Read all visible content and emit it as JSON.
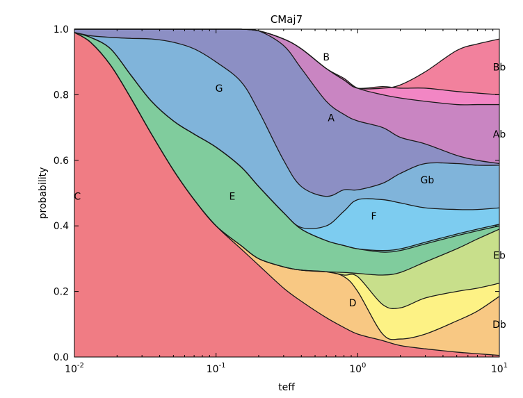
{
  "chart_data": {
    "type": "area",
    "title": "CMaj7",
    "xlabel": "teff",
    "ylabel": "probability",
    "xscale": "log",
    "xlim": [
      0.01,
      10
    ],
    "ylim": [
      0.0,
      1.0
    ],
    "x_ticks": [
      {
        "value": 0.01,
        "base": "10",
        "exp": "-2"
      },
      {
        "value": 0.1,
        "base": "10",
        "exp": "-1"
      },
      {
        "value": 1,
        "base": "10",
        "exp": "0"
      },
      {
        "value": 10,
        "base": "10",
        "exp": "1"
      }
    ],
    "y_ticks": [
      "0.0",
      "0.2",
      "0.4",
      "0.6",
      "0.8",
      "1.0"
    ],
    "x": [
      0.01,
      0.013,
      0.018,
      0.025,
      0.035,
      0.05,
      0.07,
      0.1,
      0.15,
      0.2,
      0.3,
      0.4,
      0.6,
      0.8,
      1.0,
      1.5,
      2.0,
      3.0,
      5.0,
      7.0,
      10.0
    ],
    "boundaries": [
      {
        "name": "C",
        "values": [
          0.99,
          0.96,
          0.89,
          0.79,
          0.68,
          0.57,
          0.48,
          0.4,
          0.33,
          0.28,
          0.21,
          0.17,
          0.12,
          0.09,
          0.07,
          0.05,
          0.035,
          0.025,
          0.015,
          0.01,
          0.005
        ]
      },
      {
        "name": "Db",
        "values": [
          0.99,
          0.96,
          0.89,
          0.79,
          0.68,
          0.57,
          0.48,
          0.4,
          0.34,
          0.3,
          0.275,
          0.265,
          0.26,
          0.245,
          0.2,
          0.07,
          0.055,
          0.07,
          0.11,
          0.14,
          0.185
        ]
      },
      {
        "name": "D",
        "values": [
          0.99,
          0.96,
          0.89,
          0.79,
          0.68,
          0.57,
          0.48,
          0.4,
          0.34,
          0.3,
          0.275,
          0.265,
          0.26,
          0.25,
          0.245,
          0.16,
          0.15,
          0.18,
          0.2,
          0.21,
          0.225
        ]
      },
      {
        "name": "Eb",
        "values": [
          0.99,
          0.96,
          0.89,
          0.79,
          0.68,
          0.57,
          0.48,
          0.4,
          0.34,
          0.3,
          0.275,
          0.265,
          0.26,
          0.258,
          0.255,
          0.25,
          0.258,
          0.29,
          0.33,
          0.36,
          0.39
        ]
      },
      {
        "name": "E",
        "values": [
          0.99,
          0.975,
          0.94,
          0.86,
          0.78,
          0.72,
          0.68,
          0.64,
          0.58,
          0.52,
          0.44,
          0.39,
          0.355,
          0.34,
          0.33,
          0.32,
          0.325,
          0.345,
          0.37,
          0.385,
          0.4
        ]
      },
      {
        "name": "F",
        "values": [
          0.99,
          0.975,
          0.94,
          0.86,
          0.78,
          0.72,
          0.68,
          0.64,
          0.58,
          0.52,
          0.44,
          0.39,
          0.355,
          0.34,
          0.33,
          0.325,
          0.33,
          0.35,
          0.375,
          0.39,
          0.405
        ]
      },
      {
        "name": "Gb",
        "values": [
          0.99,
          0.975,
          0.94,
          0.86,
          0.78,
          0.72,
          0.68,
          0.64,
          0.58,
          0.52,
          0.44,
          0.395,
          0.4,
          0.445,
          0.48,
          0.48,
          0.47,
          0.455,
          0.45,
          0.45,
          0.455
        ]
      },
      {
        "name": "G",
        "values": [
          0.99,
          0.98,
          0.975,
          0.972,
          0.97,
          0.96,
          0.94,
          0.9,
          0.84,
          0.75,
          0.6,
          0.52,
          0.49,
          0.51,
          0.51,
          0.53,
          0.56,
          0.59,
          0.59,
          0.585,
          0.585
        ]
      },
      {
        "name": "Ab",
        "values": [
          1.0,
          1.0,
          1.0,
          1.0,
          1.0,
          1.0,
          1.0,
          1.0,
          1.0,
          0.995,
          0.95,
          0.88,
          0.78,
          0.74,
          0.72,
          0.7,
          0.67,
          0.65,
          0.615,
          0.6,
          0.59
        ]
      },
      {
        "name": "A",
        "values": [
          1.0,
          1.0,
          1.0,
          1.0,
          1.0,
          1.0,
          1.0,
          1.0,
          1.0,
          0.995,
          0.97,
          0.94,
          0.88,
          0.85,
          0.82,
          0.8,
          0.79,
          0.78,
          0.77,
          0.77,
          0.77
        ]
      },
      {
        "name": "Bb",
        "values": [
          1.0,
          1.0,
          1.0,
          1.0,
          1.0,
          1.0,
          1.0,
          1.0,
          1.0,
          0.995,
          0.97,
          0.94,
          0.88,
          0.845,
          0.82,
          0.825,
          0.82,
          0.82,
          0.81,
          0.805,
          0.8
        ]
      },
      {
        "name": "B",
        "values": [
          1.0,
          1.0,
          1.0,
          1.0,
          1.0,
          1.0,
          1.0,
          1.0,
          1.0,
          0.995,
          0.97,
          0.94,
          0.88,
          0.845,
          0.82,
          0.82,
          0.83,
          0.87,
          0.935,
          0.955,
          0.97
        ]
      }
    ],
    "colors": {
      "C": "#f07c84",
      "Db": "#f8c883",
      "D": "#fdf285",
      "Eb": "#c8df8b",
      "E": "#80cc9d",
      "F": "#7fcdc4",
      "Gb": "#7dccf0",
      "G": "#80b4da",
      "Ab": "#8c8fc4",
      "A": "#c985c2",
      "Bb": "#f286c4",
      "B": "#f2819d"
    },
    "labels": [
      {
        "text": "C",
        "x": 0.0105,
        "y": 0.49
      },
      {
        "text": "Db",
        "x": 10,
        "y": 0.1
      },
      {
        "text": "D",
        "x": 0.92,
        "y": 0.165
      },
      {
        "text": "Eb",
        "x": 10,
        "y": 0.31
      },
      {
        "text": "E",
        "x": 0.13,
        "y": 0.49
      },
      {
        "text": "F",
        "x": 1.3,
        "y": 0.43
      },
      {
        "text": "Gb",
        "x": 3.1,
        "y": 0.54
      },
      {
        "text": "G",
        "x": 0.105,
        "y": 0.82
      },
      {
        "text": "Ab",
        "x": 10,
        "y": 0.68
      },
      {
        "text": "A",
        "x": 0.65,
        "y": 0.73
      },
      {
        "text": "Bb",
        "x": 10,
        "y": 0.885
      },
      {
        "text": "B",
        "x": 0.6,
        "y": 0.915
      }
    ]
  }
}
